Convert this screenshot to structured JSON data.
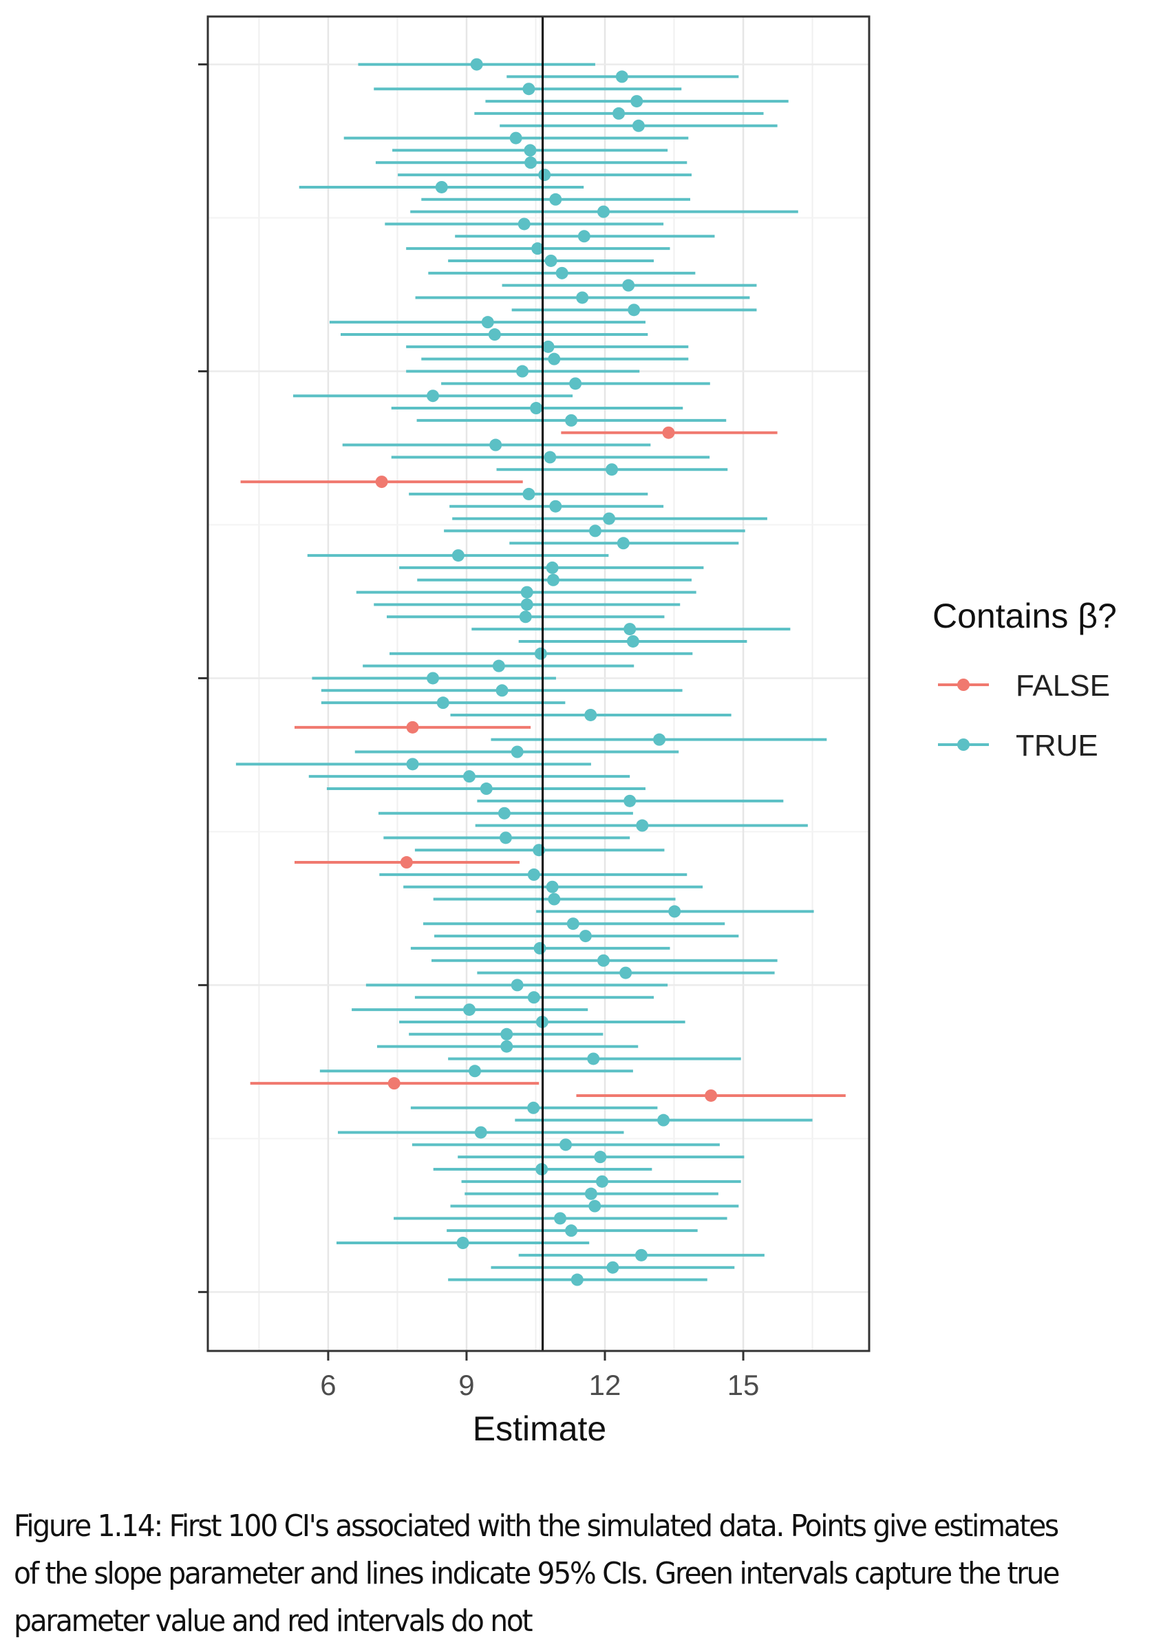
{
  "chart_data": {
    "type": "scatter",
    "subtype": "interval-dot (forest plot of confidence intervals)",
    "xlabel": "Estimate",
    "ylabel": "",
    "xlim": [
      3.39,
      17.73
    ],
    "x_ticks": [
      6,
      9,
      12,
      15
    ],
    "x_tick_labels": [
      "6",
      "9",
      "12",
      "15"
    ],
    "x_minor_gridlines": [
      4.5,
      7.5,
      10.5,
      13.5,
      16.5
    ],
    "ylim": [
      -4.8,
      103.9
    ],
    "y_ticks": [
      0,
      25,
      50,
      75,
      100
    ],
    "y_tick_labels_visible": false,
    "grid": true,
    "reference_line": {
      "x": 10.65,
      "color": "#000000",
      "label": "true slope"
    },
    "legend": {
      "title": "Contains β?",
      "position": "right",
      "entries": [
        {
          "label": "FALSE",
          "color": "#F0796F"
        },
        {
          "label": "TRUE",
          "color": "#5BC0C5"
        }
      ]
    },
    "series_order": "top-to-bottom",
    "intervals": [
      {
        "y": 100,
        "lo": 6.65,
        "est": 9.22,
        "hi": 11.79,
        "contains": true
      },
      {
        "y": 99,
        "lo": 9.87,
        "est": 12.37,
        "hi": 14.9,
        "contains": true
      },
      {
        "y": 98,
        "lo": 6.99,
        "est": 10.35,
        "hi": 13.66,
        "contains": true
      },
      {
        "y": 97,
        "lo": 9.41,
        "est": 12.69,
        "hi": 15.98,
        "contains": true
      },
      {
        "y": 96,
        "lo": 9.17,
        "est": 12.3,
        "hi": 15.44,
        "contains": true
      },
      {
        "y": 95,
        "lo": 9.72,
        "est": 12.73,
        "hi": 15.74,
        "contains": true
      },
      {
        "y": 94,
        "lo": 6.34,
        "est": 10.07,
        "hi": 13.81,
        "contains": true
      },
      {
        "y": 93,
        "lo": 7.39,
        "est": 10.38,
        "hi": 13.36,
        "contains": true
      },
      {
        "y": 92,
        "lo": 7.03,
        "est": 10.39,
        "hi": 13.78,
        "contains": true
      },
      {
        "y": 91,
        "lo": 7.51,
        "est": 10.69,
        "hi": 13.88,
        "contains": true
      },
      {
        "y": 90,
        "lo": 5.37,
        "est": 8.46,
        "hi": 11.54,
        "contains": true
      },
      {
        "y": 89,
        "lo": 8.02,
        "est": 10.93,
        "hi": 13.85,
        "contains": true
      },
      {
        "y": 88,
        "lo": 7.78,
        "est": 11.97,
        "hi": 16.19,
        "contains": true
      },
      {
        "y": 87,
        "lo": 7.23,
        "est": 10.25,
        "hi": 13.27,
        "contains": true
      },
      {
        "y": 86,
        "lo": 8.75,
        "est": 11.55,
        "hi": 14.38,
        "contains": true
      },
      {
        "y": 85,
        "lo": 7.69,
        "est": 10.54,
        "hi": 13.41,
        "contains": true
      },
      {
        "y": 84,
        "lo": 8.6,
        "est": 10.83,
        "hi": 13.06,
        "contains": true
      },
      {
        "y": 83,
        "lo": 8.17,
        "est": 11.07,
        "hi": 13.96,
        "contains": true
      },
      {
        "y": 82,
        "lo": 9.77,
        "est": 12.51,
        "hi": 15.29,
        "contains": true
      },
      {
        "y": 81,
        "lo": 7.89,
        "est": 11.51,
        "hi": 15.14,
        "contains": true
      },
      {
        "y": 80,
        "lo": 9.98,
        "est": 12.63,
        "hi": 15.29,
        "contains": true
      },
      {
        "y": 79,
        "lo": 6.03,
        "est": 9.46,
        "hi": 12.88,
        "contains": true
      },
      {
        "y": 78,
        "lo": 6.27,
        "est": 9.61,
        "hi": 12.93,
        "contains": true
      },
      {
        "y": 77,
        "lo": 7.69,
        "est": 10.77,
        "hi": 13.81,
        "contains": true
      },
      {
        "y": 76,
        "lo": 8.02,
        "est": 10.9,
        "hi": 13.81,
        "contains": true
      },
      {
        "y": 75,
        "lo": 7.69,
        "est": 10.21,
        "hi": 12.75,
        "contains": true
      },
      {
        "y": 74,
        "lo": 8.45,
        "est": 11.36,
        "hi": 14.28,
        "contains": true
      },
      {
        "y": 73,
        "lo": 5.24,
        "est": 8.27,
        "hi": 11.3,
        "contains": true
      },
      {
        "y": 72,
        "lo": 7.37,
        "est": 10.51,
        "hi": 13.69,
        "contains": true
      },
      {
        "y": 71,
        "lo": 7.92,
        "est": 11.27,
        "hi": 14.63,
        "contains": true
      },
      {
        "y": 70,
        "lo": 11.05,
        "est": 13.38,
        "hi": 15.74,
        "contains": false
      },
      {
        "y": 69,
        "lo": 6.31,
        "est": 9.63,
        "hi": 12.99,
        "contains": true
      },
      {
        "y": 68,
        "lo": 7.37,
        "est": 10.81,
        "hi": 14.27,
        "contains": true
      },
      {
        "y": 67,
        "lo": 9.65,
        "est": 12.15,
        "hi": 14.66,
        "contains": true
      },
      {
        "y": 66,
        "lo": 4.1,
        "est": 7.16,
        "hi": 10.22,
        "contains": false
      },
      {
        "y": 65,
        "lo": 7.75,
        "est": 10.35,
        "hi": 12.93,
        "contains": true
      },
      {
        "y": 64,
        "lo": 8.63,
        "est": 10.93,
        "hi": 13.27,
        "contains": true
      },
      {
        "y": 63,
        "lo": 8.69,
        "est": 12.09,
        "hi": 15.52,
        "contains": true
      },
      {
        "y": 62,
        "lo": 8.51,
        "est": 11.79,
        "hi": 15.04,
        "contains": true
      },
      {
        "y": 61,
        "lo": 9.93,
        "est": 12.4,
        "hi": 14.9,
        "contains": true
      },
      {
        "y": 60,
        "lo": 5.55,
        "est": 8.82,
        "hi": 12.08,
        "contains": true
      },
      {
        "y": 59,
        "lo": 7.54,
        "est": 10.86,
        "hi": 14.14,
        "contains": true
      },
      {
        "y": 58,
        "lo": 7.93,
        "est": 10.88,
        "hi": 13.88,
        "contains": true
      },
      {
        "y": 57,
        "lo": 6.61,
        "est": 10.31,
        "hi": 13.98,
        "contains": true
      },
      {
        "y": 56,
        "lo": 6.99,
        "est": 10.31,
        "hi": 13.63,
        "contains": true
      },
      {
        "y": 55,
        "lo": 7.27,
        "est": 10.28,
        "hi": 13.29,
        "contains": true
      },
      {
        "y": 54,
        "lo": 9.11,
        "est": 12.54,
        "hi": 16.02,
        "contains": true
      },
      {
        "y": 53,
        "lo": 10.13,
        "est": 12.61,
        "hi": 15.08,
        "contains": true
      },
      {
        "y": 52,
        "lo": 7.33,
        "est": 10.61,
        "hi": 13.9,
        "contains": true
      },
      {
        "y": 51,
        "lo": 6.75,
        "est": 9.7,
        "hi": 12.63,
        "contains": true
      },
      {
        "y": 50,
        "lo": 5.65,
        "est": 8.27,
        "hi": 10.94,
        "contains": true
      },
      {
        "y": 49,
        "lo": 5.85,
        "est": 9.77,
        "hi": 13.68,
        "contains": true
      },
      {
        "y": 48,
        "lo": 5.85,
        "est": 8.49,
        "hi": 11.14,
        "contains": true
      },
      {
        "y": 47,
        "lo": 8.65,
        "est": 11.69,
        "hi": 14.74,
        "contains": true
      },
      {
        "y": 46,
        "lo": 5.27,
        "est": 7.83,
        "hi": 10.39,
        "contains": false
      },
      {
        "y": 45,
        "lo": 9.53,
        "est": 13.18,
        "hi": 16.81,
        "contains": true
      },
      {
        "y": 44,
        "lo": 6.58,
        "est": 10.1,
        "hi": 13.6,
        "contains": true
      },
      {
        "y": 43,
        "lo": 4.0,
        "est": 7.83,
        "hi": 11.7,
        "contains": true
      },
      {
        "y": 42,
        "lo": 5.58,
        "est": 9.06,
        "hi": 12.54,
        "contains": true
      },
      {
        "y": 41,
        "lo": 5.97,
        "est": 9.43,
        "hi": 12.88,
        "contains": true
      },
      {
        "y": 40,
        "lo": 9.23,
        "est": 12.54,
        "hi": 15.87,
        "contains": true
      },
      {
        "y": 39,
        "lo": 7.09,
        "est": 9.82,
        "hi": 12.61,
        "contains": true
      },
      {
        "y": 38,
        "lo": 9.19,
        "est": 12.81,
        "hi": 16.4,
        "contains": true
      },
      {
        "y": 37,
        "lo": 7.2,
        "est": 9.85,
        "hi": 12.54,
        "contains": true
      },
      {
        "y": 36,
        "lo": 7.88,
        "est": 10.57,
        "hi": 13.29,
        "contains": true
      },
      {
        "y": 35,
        "lo": 5.27,
        "est": 7.7,
        "hi": 10.15,
        "contains": false
      },
      {
        "y": 34,
        "lo": 7.11,
        "est": 10.46,
        "hi": 13.78,
        "contains": true
      },
      {
        "y": 33,
        "lo": 7.63,
        "est": 10.86,
        "hi": 14.12,
        "contains": true
      },
      {
        "y": 32,
        "lo": 8.28,
        "est": 10.9,
        "hi": 13.53,
        "contains": true
      },
      {
        "y": 31,
        "lo": 10.51,
        "est": 13.51,
        "hi": 16.53,
        "contains": true
      },
      {
        "y": 30,
        "lo": 8.06,
        "est": 11.31,
        "hi": 14.6,
        "contains": true
      },
      {
        "y": 29,
        "lo": 8.3,
        "est": 11.58,
        "hi": 14.9,
        "contains": true
      },
      {
        "y": 28,
        "lo": 7.79,
        "est": 10.59,
        "hi": 13.41,
        "contains": true
      },
      {
        "y": 27,
        "lo": 8.24,
        "est": 11.97,
        "hi": 15.74,
        "contains": true
      },
      {
        "y": 26,
        "lo": 9.23,
        "est": 12.45,
        "hi": 15.68,
        "contains": true
      },
      {
        "y": 25,
        "lo": 6.82,
        "est": 10.1,
        "hi": 13.36,
        "contains": true
      },
      {
        "y": 24,
        "lo": 7.88,
        "est": 10.46,
        "hi": 13.06,
        "contains": true
      },
      {
        "y": 23,
        "lo": 6.51,
        "est": 9.06,
        "hi": 11.63,
        "contains": true
      },
      {
        "y": 22,
        "lo": 7.54,
        "est": 10.64,
        "hi": 13.74,
        "contains": true
      },
      {
        "y": 21,
        "lo": 7.75,
        "est": 9.87,
        "hi": 11.96,
        "contains": true
      },
      {
        "y": 20,
        "lo": 7.06,
        "est": 9.87,
        "hi": 12.72,
        "contains": true
      },
      {
        "y": 19,
        "lo": 8.6,
        "est": 11.75,
        "hi": 14.95,
        "contains": true
      },
      {
        "y": 18,
        "lo": 5.82,
        "est": 9.18,
        "hi": 12.61,
        "contains": true
      },
      {
        "y": 17,
        "lo": 4.31,
        "est": 7.43,
        "hi": 10.57,
        "contains": false
      },
      {
        "y": 16,
        "lo": 11.38,
        "est": 14.3,
        "hi": 17.22,
        "contains": false
      },
      {
        "y": 15,
        "lo": 7.79,
        "est": 10.45,
        "hi": 13.14,
        "contains": true
      },
      {
        "y": 14,
        "lo": 10.05,
        "est": 13.27,
        "hi": 16.5,
        "contains": true
      },
      {
        "y": 13,
        "lo": 6.21,
        "est": 9.31,
        "hi": 12.41,
        "contains": true
      },
      {
        "y": 12,
        "lo": 7.82,
        "est": 11.15,
        "hi": 14.49,
        "contains": true
      },
      {
        "y": 11,
        "lo": 8.81,
        "est": 11.9,
        "hi": 15.02,
        "contains": true
      },
      {
        "y": 10,
        "lo": 8.28,
        "est": 10.63,
        "hi": 13.02,
        "contains": true
      },
      {
        "y": 9,
        "lo": 8.89,
        "est": 11.94,
        "hi": 14.95,
        "contains": true
      },
      {
        "y": 8,
        "lo": 8.96,
        "est": 11.7,
        "hi": 14.46,
        "contains": true
      },
      {
        "y": 7,
        "lo": 8.65,
        "est": 11.78,
        "hi": 14.9,
        "contains": true
      },
      {
        "y": 6,
        "lo": 7.42,
        "est": 11.03,
        "hi": 14.65,
        "contains": true
      },
      {
        "y": 5,
        "lo": 8.57,
        "est": 11.27,
        "hi": 14.01,
        "contains": true
      },
      {
        "y": 4,
        "lo": 6.18,
        "est": 8.92,
        "hi": 11.66,
        "contains": true
      },
      {
        "y": 3,
        "lo": 10.13,
        "est": 12.79,
        "hi": 15.46,
        "contains": true
      },
      {
        "y": 2,
        "lo": 9.53,
        "est": 12.17,
        "hi": 14.81,
        "contains": true
      },
      {
        "y": 1,
        "lo": 8.6,
        "est": 11.4,
        "hi": 14.22,
        "contains": true
      }
    ]
  },
  "caption": "Figure 1.14: First 100 CI's associated with the simulated data. Points give estimates of the slope parameter and lines indicate 95% CIs. Green intervals capture the true parameter value and red intervals do not"
}
